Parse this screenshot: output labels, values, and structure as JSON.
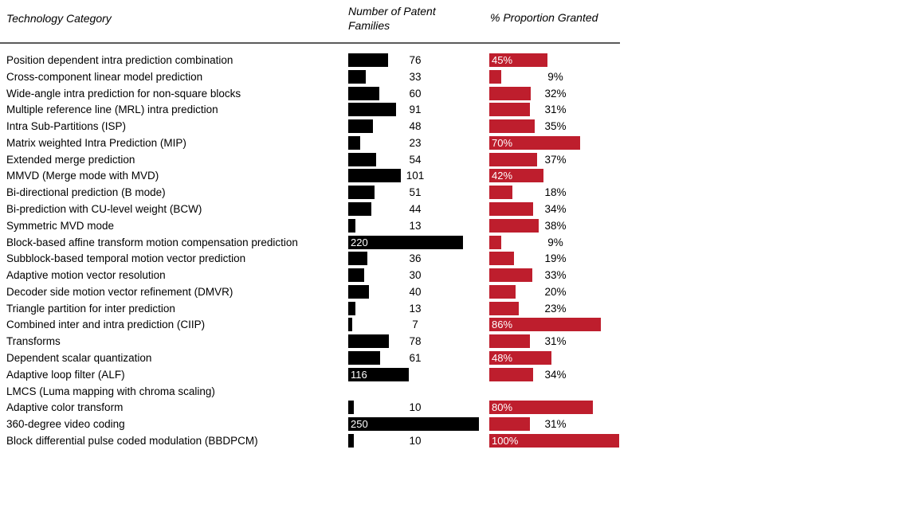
{
  "header": {
    "col1": "Technology Category",
    "col2": "Number of Patent Families",
    "col3": "% Proportion Granted"
  },
  "colors": {
    "families_bar": "#000000",
    "granted_bar": "#be1e2d",
    "header_rule": "#5a5a5a",
    "inside_label_text": "#ffffff"
  },
  "chart_data": {
    "type": "bar",
    "orientation": "horizontal",
    "title": "",
    "columns": [
      "Technology Category",
      "Number of Patent Families",
      "% Proportion Granted"
    ],
    "legend": "none",
    "grid": false,
    "series_names": [
      "Number of Patent Families",
      "% Proportion Granted"
    ],
    "rows": [
      {
        "category": "Position dependent intra prediction combination",
        "families": 76,
        "families_label_inside": false,
        "granted_pct": 45,
        "granted_label_inside": true
      },
      {
        "category": "Cross-component linear model prediction",
        "families": 33,
        "families_label_inside": false,
        "granted_pct": 9,
        "granted_label_inside": false
      },
      {
        "category": "Wide-angle intra prediction for non-square blocks",
        "families": 60,
        "families_label_inside": false,
        "granted_pct": 32,
        "granted_label_inside": false
      },
      {
        "category": "Multiple reference line (MRL) intra prediction",
        "families": 91,
        "families_label_inside": false,
        "granted_pct": 31,
        "granted_label_inside": false
      },
      {
        "category": "Intra Sub-Partitions (ISP)",
        "families": 48,
        "families_label_inside": false,
        "granted_pct": 35,
        "granted_label_inside": false
      },
      {
        "category": "Matrix weighted Intra Prediction (MIP)",
        "families": 23,
        "families_label_inside": false,
        "granted_pct": 70,
        "granted_label_inside": true
      },
      {
        "category": "Extended merge prediction",
        "families": 54,
        "families_label_inside": false,
        "granted_pct": 37,
        "granted_label_inside": false
      },
      {
        "category": "MMVD (Merge mode with MVD)",
        "families": 101,
        "families_label_inside": false,
        "granted_pct": 42,
        "granted_label_inside": true
      },
      {
        "category": "Bi-directional prediction (B mode)",
        "families": 51,
        "families_label_inside": false,
        "granted_pct": 18,
        "granted_label_inside": false
      },
      {
        "category": "Bi-prediction with CU-level weight (BCW)",
        "families": 44,
        "families_label_inside": false,
        "granted_pct": 34,
        "granted_label_inside": false
      },
      {
        "category": "Symmetric MVD mode",
        "families": 13,
        "families_label_inside": false,
        "granted_pct": 38,
        "granted_label_inside": false
      },
      {
        "category": "Block-based affine transform motion compensation prediction",
        "families": 220,
        "families_label_inside": true,
        "granted_pct": 9,
        "granted_label_inside": false
      },
      {
        "category": "Subblock-based temporal motion vector prediction",
        "families": 36,
        "families_label_inside": false,
        "granted_pct": 19,
        "granted_label_inside": false
      },
      {
        "category": "Adaptive motion vector resolution",
        "families": 30,
        "families_label_inside": false,
        "granted_pct": 33,
        "granted_label_inside": false
      },
      {
        "category": "Decoder side motion vector refinement (DMVR)",
        "families": 40,
        "families_label_inside": false,
        "granted_pct": 20,
        "granted_label_inside": false
      },
      {
        "category": "Triangle partition for inter prediction",
        "families": 13,
        "families_label_inside": false,
        "granted_pct": 23,
        "granted_label_inside": false
      },
      {
        "category": "Combined inter and intra prediction (CIIP)",
        "families": 7,
        "families_label_inside": false,
        "granted_pct": 86,
        "granted_label_inside": true
      },
      {
        "category": "Transforms",
        "families": 78,
        "families_label_inside": false,
        "granted_pct": 31,
        "granted_label_inside": false
      },
      {
        "category": "Dependent scalar quantization",
        "families": 61,
        "families_label_inside": false,
        "granted_pct": 48,
        "granted_label_inside": true
      },
      {
        "category": "Adaptive loop filter (ALF)",
        "families": 116,
        "families_label_inside": true,
        "granted_pct": 34,
        "granted_label_inside": false
      },
      {
        "category": "LMCS (Luma mapping with chroma scaling)",
        "families": null,
        "families_label_inside": false,
        "granted_pct": null,
        "granted_label_inside": false
      },
      {
        "category": "Adaptive color transform",
        "families": 10,
        "families_label_inside": false,
        "granted_pct": 80,
        "granted_label_inside": true
      },
      {
        "category": "360-degree video coding",
        "families": 250,
        "families_label_inside": true,
        "granted_pct": 31,
        "granted_label_inside": false
      },
      {
        "category": "Block differential pulse coded modulation (BBDPCM)",
        "families": 10,
        "families_label_inside": false,
        "granted_pct": 100,
        "granted_label_inside": true
      }
    ]
  }
}
